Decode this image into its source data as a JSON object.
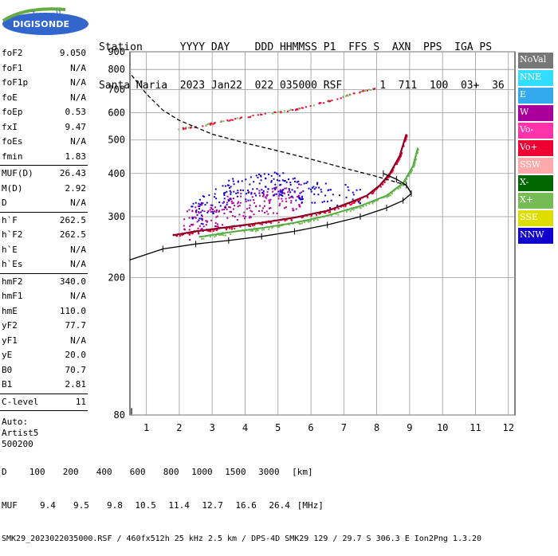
{
  "logo": {
    "top": "Lowell",
    "bottom": "DIGISONDE"
  },
  "header": {
    "labels": "Station      YYYY DAY    DDD HHMMSS P1  FFS S  AXN  PPS  IGA PS",
    "values": "Santa Maria  2023 Jan22  022 035000 RSF      1  711  100  03+  36"
  },
  "params": [
    [
      {
        "label": "foF2",
        "value": "9.050"
      },
      {
        "label": "foF1",
        "value": "N/A"
      },
      {
        "label": "foF1p",
        "value": "N/A"
      },
      {
        "label": "foE",
        "value": "N/A"
      },
      {
        "label": "foEp",
        "value": "0.53"
      },
      {
        "label": "fxI",
        "value": "9.47"
      },
      {
        "label": "foEs",
        "value": "N/A"
      },
      {
        "label": "fmin",
        "value": "1.83"
      }
    ],
    [
      {
        "label": "MUF(D)",
        "value": "26.43"
      },
      {
        "label": "M(D)",
        "value": "2.92"
      },
      {
        "label": "D",
        "value": "N/A"
      }
    ],
    [
      {
        "label": "h`F",
        "value": "262.5"
      },
      {
        "label": "h`F2",
        "value": "262.5"
      },
      {
        "label": "h`E",
        "value": "N/A"
      },
      {
        "label": "h`Es",
        "value": "N/A"
      }
    ],
    [
      {
        "label": "hmF2",
        "value": "340.0"
      },
      {
        "label": "hmF1",
        "value": "N/A"
      },
      {
        "label": "hmE",
        "value": "110.0"
      },
      {
        "label": "yF2",
        "value": "77.7"
      },
      {
        "label": "yF1",
        "value": "N/A"
      },
      {
        "label": "yE",
        "value": "20.0"
      },
      {
        "label": "B0",
        "value": "70.7"
      },
      {
        "label": "B1",
        "value": "2.81"
      }
    ],
    [
      {
        "label": "C-level",
        "value": "11"
      }
    ]
  ],
  "notes": [
    "Auto:",
    "Artist5",
    "500200"
  ],
  "legend": [
    {
      "label": "NoVal",
      "color": "#777777"
    },
    {
      "label": "NNE",
      "color": "#33ddff"
    },
    {
      "label": "E",
      "color": "#33aaee"
    },
    {
      "label": "W",
      "color": "#aa0099"
    },
    {
      "label": "Vo-",
      "color": "#ff33aa"
    },
    {
      "label": "Vo+",
      "color": "#ee0033"
    },
    {
      "label": "SSW",
      "color": "#ffaaaa"
    },
    {
      "label": "X-",
      "color": "#006600"
    },
    {
      "label": "X+",
      "color": "#77bb55"
    },
    {
      "label": "SSE",
      "color": "#dddd00"
    },
    {
      "label": "NNW",
      "color": "#1100cc"
    }
  ],
  "chart_data": {
    "type": "scatter",
    "xlim": [
      0.5,
      12.2
    ],
    "ylim": [
      80,
      900
    ],
    "y_scale": "log",
    "x_ticks": [
      1,
      2,
      3,
      4,
      5,
      6,
      7,
      8,
      9,
      10,
      11,
      12
    ],
    "y_ticks": [
      80,
      200,
      300,
      400,
      500,
      600,
      700,
      800,
      900
    ],
    "grid": true,
    "series": [
      {
        "name": "Vo+",
        "color": "#ee0033",
        "points": [
          [
            1.8,
            265
          ],
          [
            2.5,
            272
          ],
          [
            3.5,
            280
          ],
          [
            4.5,
            288
          ],
          [
            5.5,
            298
          ],
          [
            6.5,
            312
          ],
          [
            7.2,
            330
          ],
          [
            7.7,
            345
          ],
          [
            8.1,
            370
          ],
          [
            8.4,
            400
          ],
          [
            8.7,
            450
          ],
          [
            8.9,
            520
          ]
        ]
      },
      {
        "name": "X+",
        "color": "#77bb55",
        "points": [
          [
            2.6,
            262
          ],
          [
            3.5,
            270
          ],
          [
            4.5,
            278
          ],
          [
            5.5,
            288
          ],
          [
            6.5,
            302
          ],
          [
            7.5,
            322
          ],
          [
            8.3,
            345
          ],
          [
            8.8,
            375
          ],
          [
            9.1,
            420
          ],
          [
            9.25,
            475
          ]
        ]
      },
      {
        "name": "W",
        "color": "#aa0099",
        "points": [
          [
            2.1,
            280
          ],
          [
            2.6,
            300
          ],
          [
            3.1,
            310
          ],
          [
            3.6,
            320
          ],
          [
            4.2,
            330
          ],
          [
            4.7,
            335
          ],
          [
            5.2,
            340
          ],
          [
            5.7,
            345
          ]
        ]
      },
      {
        "name": "NNW",
        "color": "#1100cc",
        "points": [
          [
            2.3,
            300
          ],
          [
            3.0,
            330
          ],
          [
            3.6,
            360
          ],
          [
            4.4,
            370
          ],
          [
            5.0,
            380
          ],
          [
            5.5,
            360
          ],
          [
            6.2,
            350
          ],
          [
            7.5,
            340
          ]
        ]
      }
    ],
    "trace_profile": [
      [
        0.5,
        225
      ],
      [
        1.5,
        242
      ],
      [
        2.5,
        250
      ],
      [
        3.5,
        256
      ],
      [
        4.5,
        263
      ],
      [
        5.5,
        272
      ],
      [
        6.5,
        284
      ],
      [
        7.5,
        300
      ],
      [
        8.3,
        318
      ],
      [
        8.8,
        334
      ],
      [
        9.05,
        350
      ],
      [
        8.9,
        370
      ],
      [
        8.6,
        385
      ],
      [
        8.2,
        400
      ]
    ],
    "d_curve": [
      [
        0.55,
        770
      ],
      [
        1.0,
        680
      ],
      [
        1.5,
        610
      ],
      [
        2.0,
        570
      ],
      [
        3.0,
        520
      ],
      [
        4.0,
        490
      ],
      [
        5.0,
        465
      ],
      [
        6.0,
        440
      ],
      [
        7.0,
        415
      ],
      [
        8.0,
        392
      ],
      [
        8.9,
        370
      ],
      [
        9.05,
        350
      ]
    ],
    "f2_high": [
      [
        1.9,
        540
      ],
      [
        2.6,
        550
      ],
      [
        3.1,
        563
      ],
      [
        4.0,
        585
      ],
      [
        5.0,
        605
      ],
      [
        5.6,
        618
      ],
      [
        6.5,
        650
      ],
      [
        7.2,
        680
      ],
      [
        8.0,
        712
      ]
    ],
    "muf_table": {
      "d_label": "D",
      "muf_label": "MUF",
      "d_values": [
        "100",
        "200",
        "400",
        "600",
        "800",
        "1000",
        "1500",
        "3000",
        "[km]"
      ],
      "muf_values": [
        "9.4",
        "9.5",
        "9.8",
        "10.5",
        "11.4",
        "12.7",
        "16.6",
        "26.4",
        "[MHz]"
      ]
    }
  },
  "footer": "SMK29_2023022035000.RSF / 460fx512h 25 kHz 2.5 km / DPS-4D SMK29 129 / 29.7 S 306.3 E Ion2Png 1.3.20"
}
